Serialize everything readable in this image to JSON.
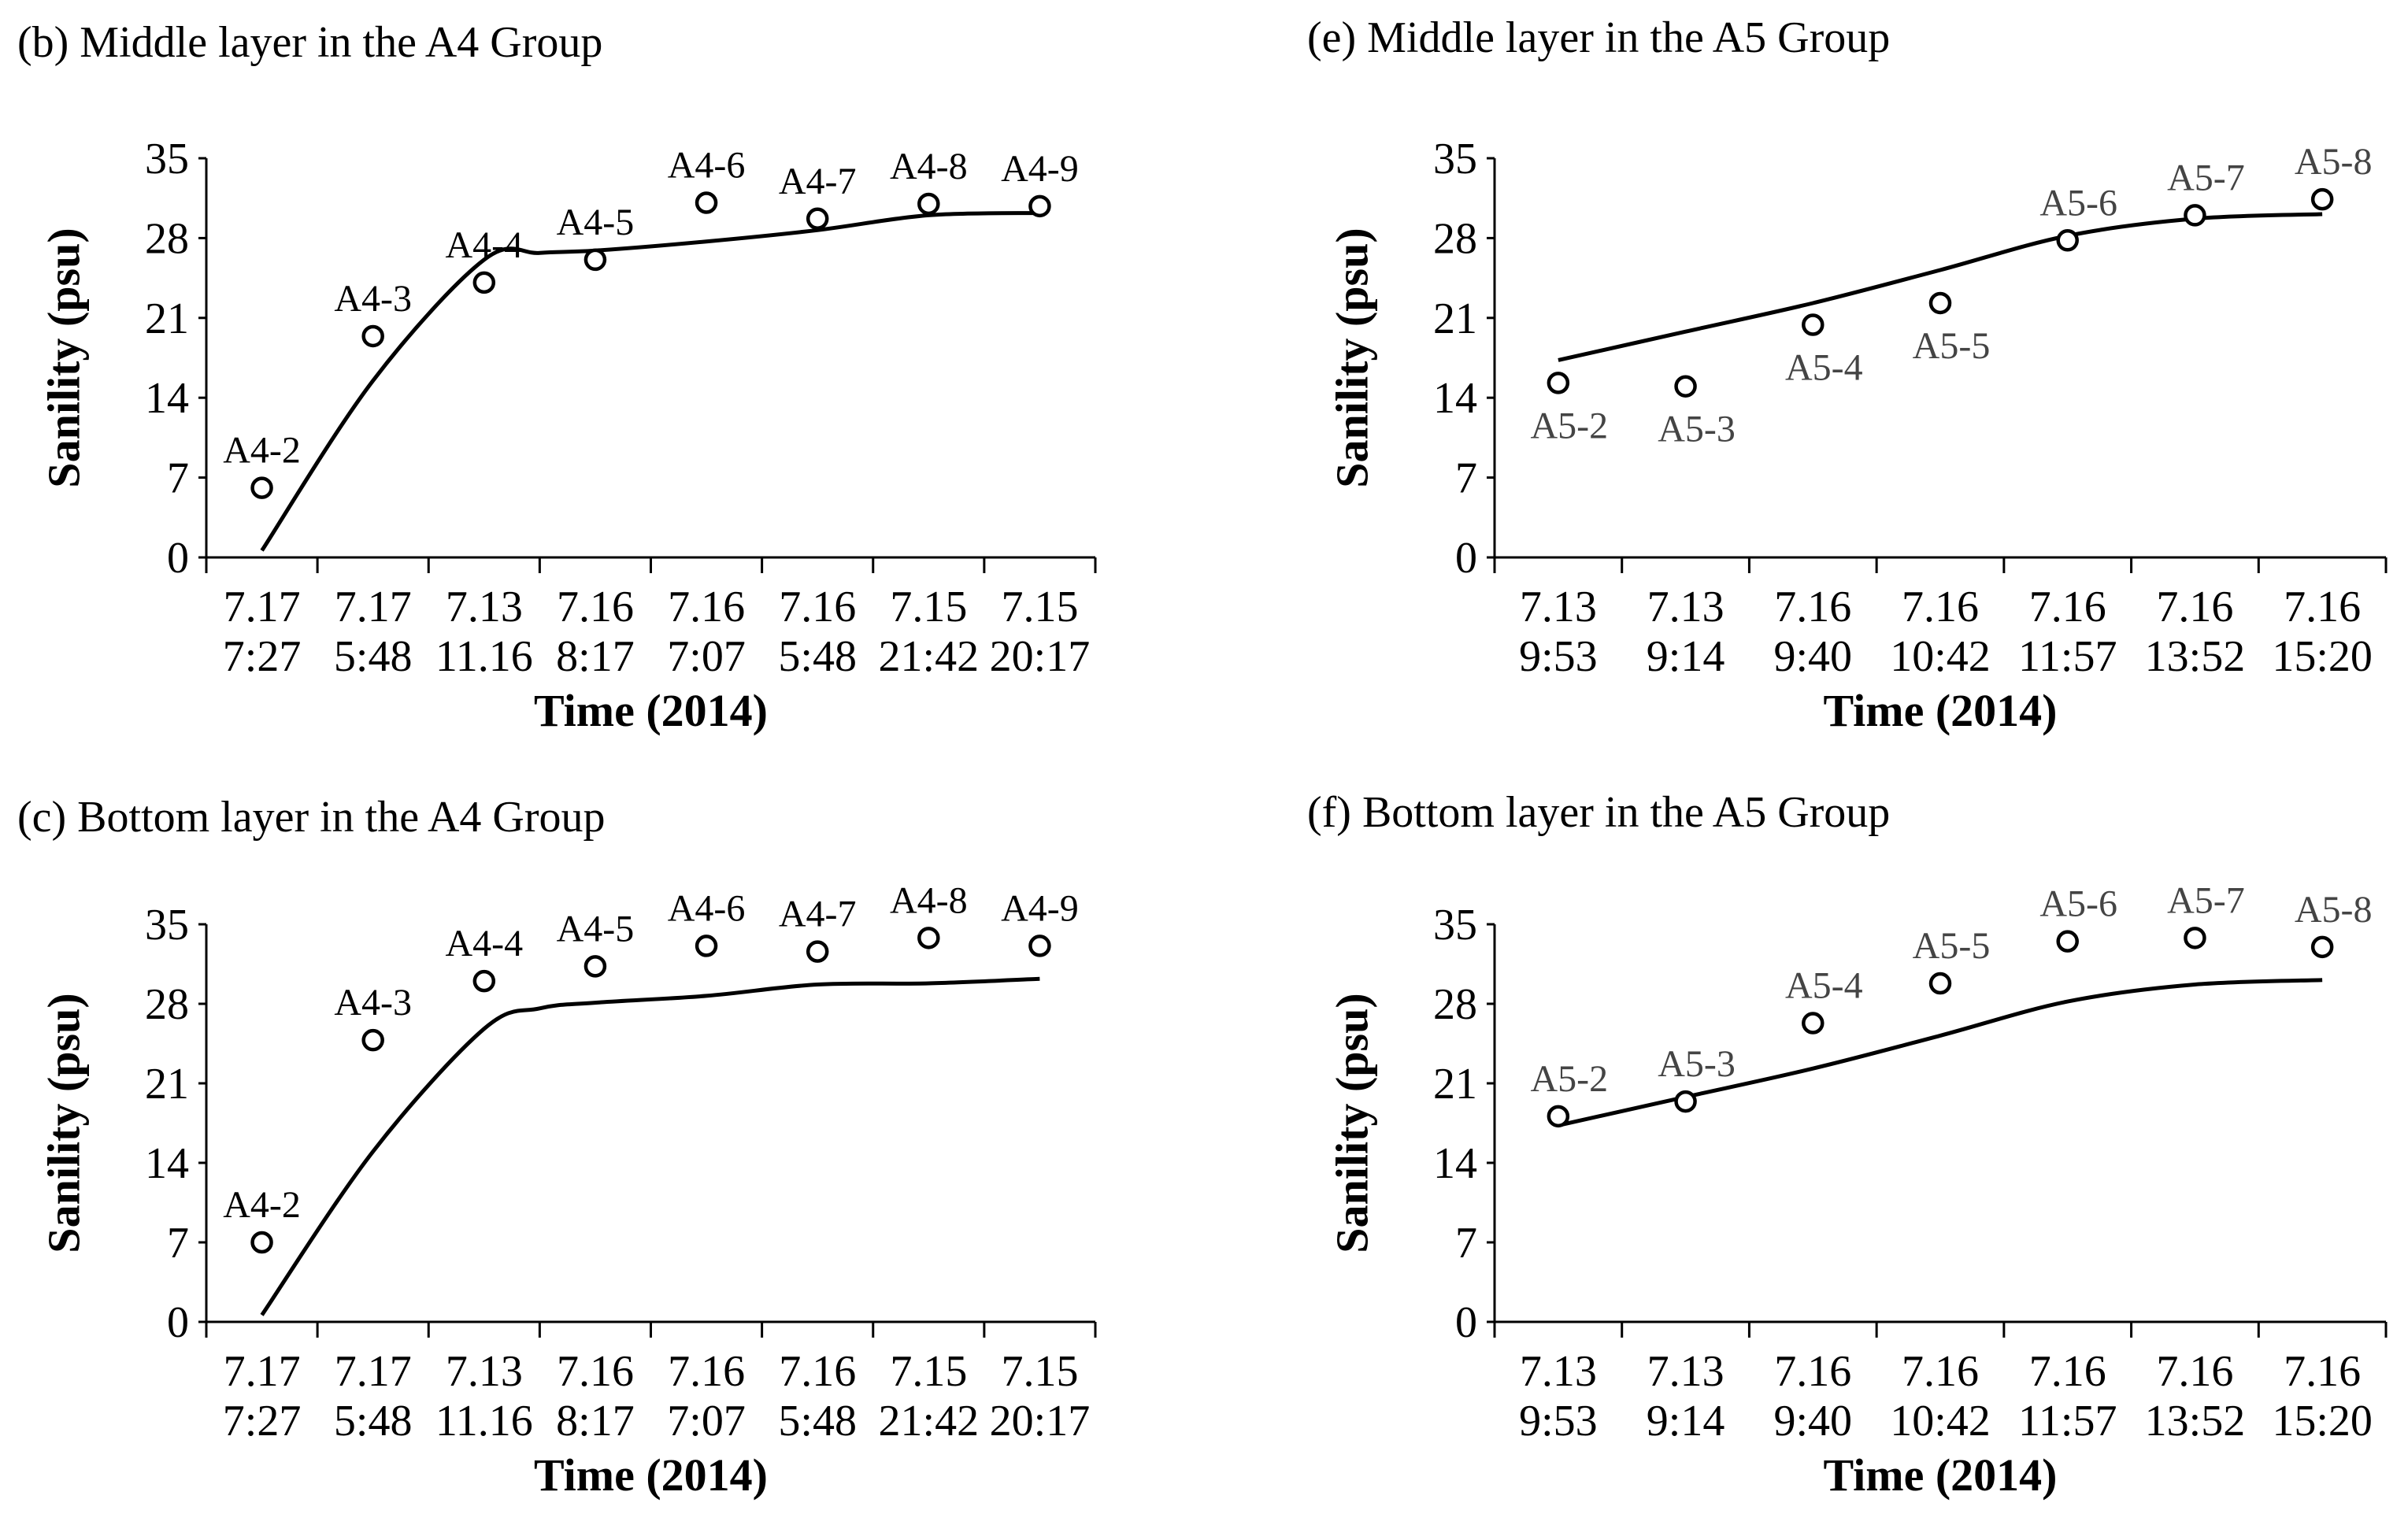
{
  "chart_data": [
    {
      "type": "scatter",
      "panel_title": "(b) Middle layer in the A4 Group",
      "xlabel": "Time (2014)",
      "ylabel": "Sanility (psu)",
      "ylim": [
        0,
        35
      ],
      "yticks": [
        0,
        7,
        14,
        21,
        28,
        35
      ],
      "grid": false,
      "categories": [
        {
          "date": "7.17",
          "time": "7:27"
        },
        {
          "date": "7.17",
          "time": "5:48"
        },
        {
          "date": "7.13",
          "time": "11.16"
        },
        {
          "date": "7.16",
          "time": "8:17"
        },
        {
          "date": "7.16",
          "time": "7:07"
        },
        {
          "date": "7.16",
          "time": "5:48"
        },
        {
          "date": "7.15",
          "time": "21:42"
        },
        {
          "date": "7.15",
          "time": "20:17"
        }
      ],
      "points": [
        {
          "label": "A4-2",
          "value": 6.1
        },
        {
          "label": "A4-3",
          "value": 19.4
        },
        {
          "label": "A4-4",
          "value": 24.1
        },
        {
          "label": "A4-5",
          "value": 26.1
        },
        {
          "label": "A4-6",
          "value": 31.1
        },
        {
          "label": "A4-7",
          "value": 29.7
        },
        {
          "label": "A4-8",
          "value": 31.0
        },
        {
          "label": "A4-9",
          "value": 30.8
        }
      ],
      "line": [
        {
          "x": 0,
          "y": 0.6
        },
        {
          "x": 1,
          "y": 15.5
        },
        {
          "x": 2,
          "y": 26.1
        },
        {
          "x": 2.5,
          "y": 26.7
        },
        {
          "x": 3,
          "y": 26.9
        },
        {
          "x": 4,
          "y": 27.7
        },
        {
          "x": 5,
          "y": 28.7
        },
        {
          "x": 6,
          "y": 30.0
        },
        {
          "x": 7,
          "y": 30.2
        }
      ]
    },
    {
      "type": "scatter",
      "panel_title": "(e) Middle layer in the A5 Group",
      "xlabel": "Time (2014)",
      "ylabel": "Sanility (psu)",
      "ylim": [
        0,
        35
      ],
      "yticks": [
        0,
        7,
        14,
        21,
        28,
        35
      ],
      "grid": false,
      "categories": [
        {
          "date": "7.13",
          "time": "9:53"
        },
        {
          "date": "7.13",
          "time": "9:14"
        },
        {
          "date": "7.16",
          "time": "9:40"
        },
        {
          "date": "7.16",
          "time": "10:42"
        },
        {
          "date": "7.16",
          "time": "11:57"
        },
        {
          "date": "7.16",
          "time": "13:52"
        },
        {
          "date": "7.16",
          "time": "15:20"
        }
      ],
      "points": [
        {
          "label": "A5-2",
          "value": 15.3
        },
        {
          "label": "A5-3",
          "value": 15.0
        },
        {
          "label": "A5-4",
          "value": 20.4
        },
        {
          "label": "A5-5",
          "value": 22.3
        },
        {
          "label": "A5-6",
          "value": 27.8
        },
        {
          "label": "A5-7",
          "value": 30.0
        },
        {
          "label": "A5-8",
          "value": 31.4
        }
      ],
      "label_below": [
        true,
        true,
        true,
        true,
        false,
        false,
        false
      ],
      "line": [
        {
          "x": 0,
          "y": 17.3
        },
        {
          "x": 1,
          "y": 19.8
        },
        {
          "x": 2,
          "y": 22.3
        },
        {
          "x": 3,
          "y": 25.2
        },
        {
          "x": 4,
          "y": 28.2
        },
        {
          "x": 5,
          "y": 29.7
        },
        {
          "x": 6,
          "y": 30.1
        }
      ]
    },
    {
      "type": "scatter",
      "panel_title": "(c) Bottom layer in the A4 Group",
      "xlabel": "Time (2014)",
      "ylabel": "Sanility (psu)",
      "ylim": [
        0,
        35
      ],
      "yticks": [
        0,
        7,
        14,
        21,
        28,
        35
      ],
      "grid": false,
      "categories": [
        {
          "date": "7.17",
          "time": "7:27"
        },
        {
          "date": "7.17",
          "time": "5:48"
        },
        {
          "date": "7.13",
          "time": "11.16"
        },
        {
          "date": "7.16",
          "time": "8:17"
        },
        {
          "date": "7.16",
          "time": "7:07"
        },
        {
          "date": "7.16",
          "time": "5:48"
        },
        {
          "date": "7.15",
          "time": "21:42"
        },
        {
          "date": "7.15",
          "time": "20:17"
        }
      ],
      "points": [
        {
          "label": "A4-2",
          "value": 7.0
        },
        {
          "label": "A4-3",
          "value": 24.8
        },
        {
          "label": "A4-4",
          "value": 30.0
        },
        {
          "label": "A4-5",
          "value": 31.3
        },
        {
          "label": "A4-6",
          "value": 33.1
        },
        {
          "label": "A4-7",
          "value": 32.6
        },
        {
          "label": "A4-8",
          "value": 33.8
        },
        {
          "label": "A4-9",
          "value": 33.1
        }
      ],
      "line": [
        {
          "x": 0,
          "y": 0.6
        },
        {
          "x": 1,
          "y": 15.0
        },
        {
          "x": 2,
          "y": 25.8
        },
        {
          "x": 2.5,
          "y": 27.6
        },
        {
          "x": 3,
          "y": 28.1
        },
        {
          "x": 4,
          "y": 28.7
        },
        {
          "x": 5,
          "y": 29.7
        },
        {
          "x": 6,
          "y": 29.8
        },
        {
          "x": 7,
          "y": 30.2
        }
      ]
    },
    {
      "type": "scatter",
      "panel_title": "(f) Bottom layer in the A5 Group",
      "xlabel": "Time (2014)",
      "ylabel": "Sanility (psu)",
      "ylim": [
        0,
        35
      ],
      "yticks": [
        0,
        7,
        14,
        21,
        28,
        35
      ],
      "grid": false,
      "categories": [
        {
          "date": "7.13",
          "time": "9:53"
        },
        {
          "date": "7.13",
          "time": "9:14"
        },
        {
          "date": "7.16",
          "time": "9:40"
        },
        {
          "date": "7.16",
          "time": "10:42"
        },
        {
          "date": "7.16",
          "time": "11:57"
        },
        {
          "date": "7.16",
          "time": "13:52"
        },
        {
          "date": "7.16",
          "time": "15:20"
        }
      ],
      "points": [
        {
          "label": "A5-2",
          "value": 18.1
        },
        {
          "label": "A5-3",
          "value": 19.4
        },
        {
          "label": "A5-4",
          "value": 26.3
        },
        {
          "label": "A5-5",
          "value": 29.8
        },
        {
          "label": "A5-6",
          "value": 33.5
        },
        {
          "label": "A5-7",
          "value": 33.8
        },
        {
          "label": "A5-8",
          "value": 33.0
        }
      ],
      "line": [
        {
          "x": 0,
          "y": 17.3
        },
        {
          "x": 1,
          "y": 19.8
        },
        {
          "x": 2,
          "y": 22.3
        },
        {
          "x": 3,
          "y": 25.2
        },
        {
          "x": 4,
          "y": 28.2
        },
        {
          "x": 5,
          "y": 29.7
        },
        {
          "x": 6,
          "y": 30.1
        }
      ]
    }
  ]
}
